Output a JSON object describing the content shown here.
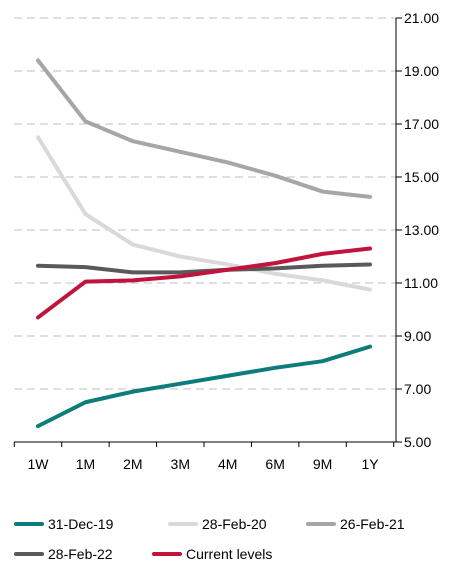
{
  "chart_data": {
    "type": "line",
    "categories": [
      "1W",
      "1M",
      "2M",
      "3M",
      "4M",
      "6M",
      "9M",
      "1Y"
    ],
    "ylim": [
      5,
      21
    ],
    "yticks": [
      "5.00",
      "7.00",
      "9.00",
      "11.00",
      "13.00",
      "15.00",
      "17.00",
      "19.00",
      "21.00"
    ],
    "y_axis_side": "right",
    "grid": "horizontal-dashed",
    "legend_position": "bottom",
    "series": [
      {
        "name": "31-Dec-19",
        "color": "#0e7c7b",
        "values": [
          5.6,
          6.5,
          6.9,
          7.2,
          7.5,
          7.8,
          8.05,
          8.6
        ]
      },
      {
        "name": "28-Feb-20",
        "color": "#d9d9d9",
        "values": [
          16.5,
          13.6,
          12.45,
          12.0,
          11.7,
          11.35,
          11.1,
          10.75
        ]
      },
      {
        "name": "26-Feb-21",
        "color": "#a6a6a6",
        "values": [
          19.4,
          17.1,
          16.35,
          15.95,
          15.55,
          15.05,
          14.45,
          14.25
        ]
      },
      {
        "name": "28-Feb-22",
        "color": "#595959",
        "values": [
          11.65,
          11.6,
          11.4,
          11.4,
          11.5,
          11.55,
          11.65,
          11.7
        ]
      },
      {
        "name": "Current levels",
        "color": "#c0143c",
        "values": [
          9.7,
          11.05,
          11.1,
          11.25,
          11.5,
          11.75,
          12.1,
          12.3
        ]
      }
    ]
  },
  "legend": [
    {
      "label": "31-Dec-19",
      "color": "#0e7c7b"
    },
    {
      "label": "28-Feb-20",
      "color": "#d9d9d9"
    },
    {
      "label": "26-Feb-21",
      "color": "#a6a6a6"
    },
    {
      "label": "28-Feb-22",
      "color": "#595959"
    },
    {
      "label": "Current levels",
      "color": "#c0143c"
    }
  ]
}
